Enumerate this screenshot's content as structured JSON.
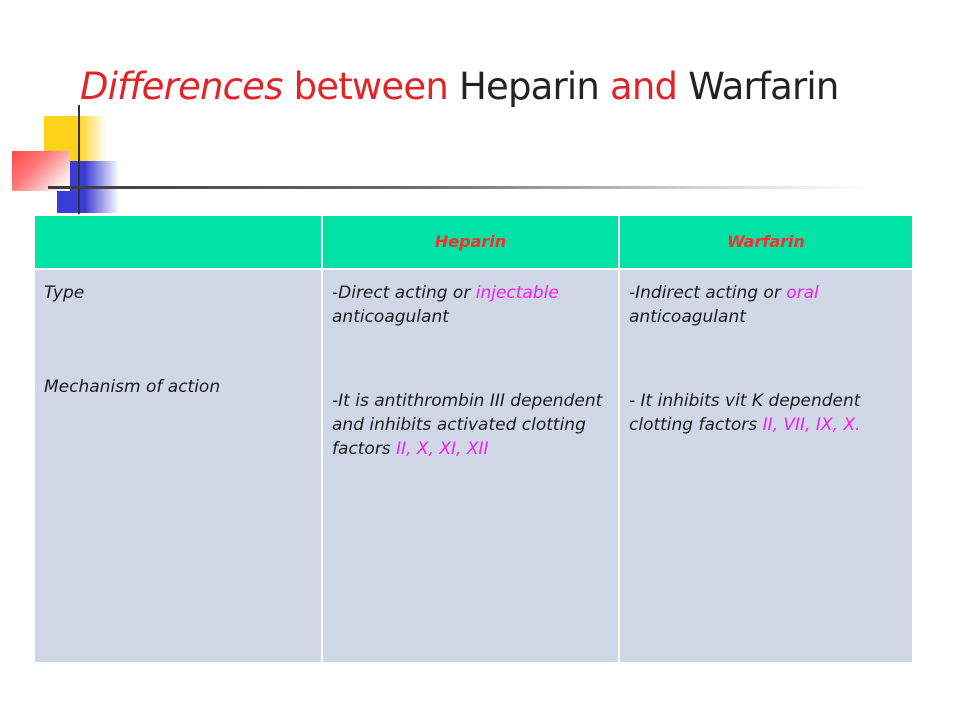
{
  "slide": {
    "title": {
      "w1": "Differences",
      "w2": "between",
      "w3": "Heparin",
      "w4": "and",
      "w5": "Warfarin"
    }
  },
  "table": {
    "headers": [
      "",
      "Heparin",
      "Warfarin"
    ],
    "row_labels": {
      "type": "Type",
      "mechanism": "Mechanism of action"
    },
    "heparin": {
      "type_a": "-Direct acting or",
      "type_hl": "injectable",
      "type_b": "anticoagulant",
      "mech_a": "-It is antithrombin III dependent and inhibits activated clotting factors",
      "mech_hl": "II, X, XI, XII"
    },
    "warfarin": {
      "type_a": "-Indirect acting or",
      "type_hl": "oral",
      "type_b": "anticoagulant",
      "mech_a": "- It inhibits vit K dependent clotting factors",
      "mech_hl": "II, VII, IX, X."
    }
  },
  "colors": {
    "title_red": "#e0242a",
    "header_bg": "#00e2a6",
    "header_text": "#ff2a2a",
    "body_bg": "#d0d8e8",
    "highlight": "#ee22ee"
  }
}
